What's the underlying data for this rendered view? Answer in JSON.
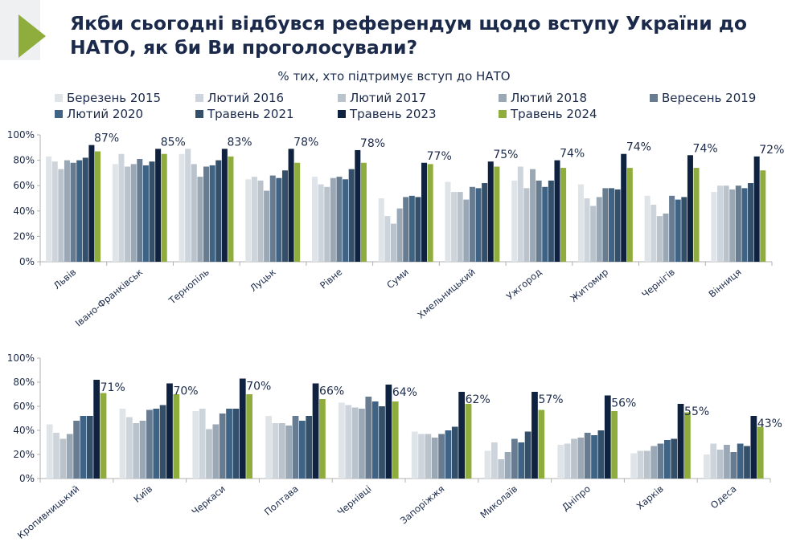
{
  "header": {
    "title": "Якби сьогодні відбувся референдум щодо вступу України до НАТО, як би Ви проголосували?",
    "subtitle": "% тих, хто підтримує вступ до НАТО"
  },
  "colors": {
    "logo_green": "#8fad3c",
    "logo_gray": "#eef0f2",
    "title": "#1b2a4a"
  },
  "chart_data": {
    "type": "bar",
    "y_ticks": [
      "0%",
      "20%",
      "40%",
      "60%",
      "80%",
      "100%"
    ],
    "ylim": [
      0,
      100
    ],
    "grid": false,
    "legend_placement": "top",
    "series": [
      {
        "name": "Березень 2015",
        "color": "#dfe4e9"
      },
      {
        "name": "Лютий 2016",
        "color": "#cdd4db"
      },
      {
        "name": "Лютий 2017",
        "color": "#bac3cc"
      },
      {
        "name": "Лютий 2018",
        "color": "#9aa8b6"
      },
      {
        "name": "Вересень 2019",
        "color": "#687c91"
      },
      {
        "name": "Лютий 2020",
        "color": "#3f6385"
      },
      {
        "name": "Травень 2021",
        "color": "#334f6a"
      },
      {
        "name": "Травень 2023",
        "color": "#0f223f"
      },
      {
        "name": "Травень 2024",
        "color": "#8fad3c"
      }
    ],
    "panels": [
      {
        "categories": [
          "Львів",
          "Івано-Франківськ",
          "Тернопіль",
          "Луцьк",
          "Рівне",
          "Суми",
          "Хмельницький",
          "Ужгород",
          "Житомир",
          "Чернігів",
          "Вінниця"
        ],
        "values": [
          [
            83,
            79,
            73,
            80,
            78,
            80,
            82,
            92,
            87
          ],
          [
            77,
            85,
            75,
            77,
            81,
            76,
            79,
            89,
            85
          ],
          [
            85,
            89,
            77,
            67,
            75,
            76,
            80,
            89,
            83
          ],
          [
            65,
            67,
            64,
            56,
            68,
            66,
            72,
            89,
            78
          ],
          [
            67,
            61,
            59,
            66,
            67,
            65,
            73,
            88,
            78
          ],
          [
            50,
            36,
            30,
            42,
            51,
            52,
            51,
            78,
            77
          ],
          [
            63,
            55,
            55,
            49,
            59,
            58,
            62,
            79,
            75
          ],
          [
            64,
            75,
            58,
            73,
            64,
            59,
            64,
            80,
            74
          ],
          [
            61,
            50,
            44,
            51,
            58,
            58,
            57,
            85,
            74
          ],
          [
            52,
            45,
            36,
            38,
            52,
            49,
            51,
            84,
            74
          ],
          [
            55,
            60,
            60,
            57,
            60,
            58,
            62,
            83,
            72
          ]
        ],
        "labels": [
          "87%",
          "85%",
          "83%",
          "78%",
          "78%",
          "77%",
          "75%",
          "74%",
          "74%",
          "74%",
          "72%"
        ]
      },
      {
        "categories": [
          "Кропивницький",
          "Київ",
          "Черкаси",
          "Полтава",
          "Чернівці",
          "Запоріжжя",
          "Миколаїв",
          "Дніпро",
          "Харків",
          "Одеса"
        ],
        "values": [
          [
            45,
            38,
            33,
            37,
            48,
            52,
            52,
            82,
            71
          ],
          [
            58,
            51,
            46,
            48,
            57,
            58,
            61,
            79,
            70
          ],
          [
            56,
            58,
            41,
            45,
            54,
            58,
            58,
            83,
            70
          ],
          [
            52,
            46,
            46,
            44,
            52,
            48,
            52,
            79,
            66
          ],
          [
            63,
            61,
            59,
            58,
            68,
            64,
            60,
            78,
            64
          ],
          [
            39,
            37,
            37,
            34,
            37,
            40,
            43,
            72,
            62
          ],
          [
            23,
            30,
            16,
            22,
            33,
            30,
            39,
            72,
            57
          ],
          [
            28,
            29,
            33,
            34,
            38,
            36,
            40,
            69,
            56
          ],
          [
            21,
            23,
            23,
            27,
            29,
            32,
            33,
            62,
            55
          ],
          [
            20,
            29,
            24,
            28,
            22,
            29,
            27,
            52,
            43
          ]
        ],
        "labels": [
          "71%",
          "70%",
          "70%",
          "66%",
          "64%",
          "62%",
          "57%",
          "56%",
          "55%",
          "43%"
        ]
      }
    ]
  }
}
